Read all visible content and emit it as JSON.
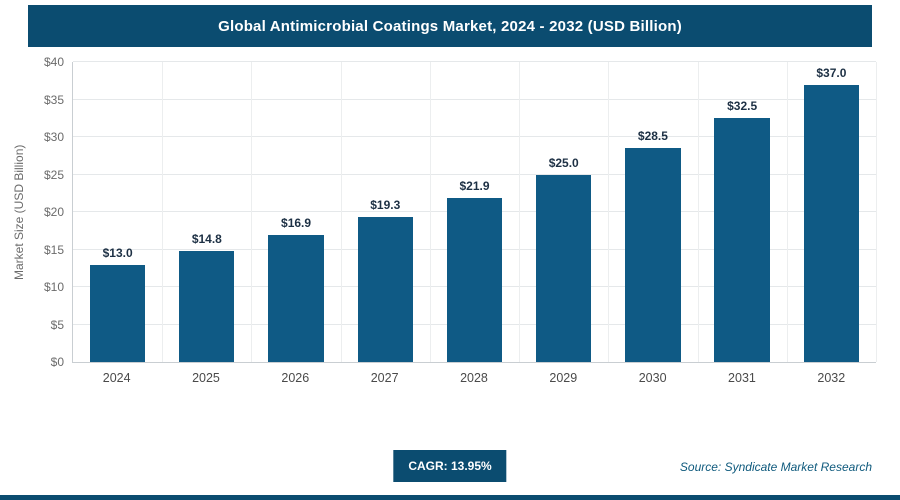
{
  "header": {
    "title": "Global Antimicrobial Coatings Market, 2024 - 2032 (USD Billion)"
  },
  "chart_data": {
    "type": "bar",
    "title": "Global Antimicrobial Coatings Market, 2024 - 2032 (USD Billion)",
    "categories": [
      "2024",
      "2025",
      "2026",
      "2027",
      "2028",
      "2029",
      "2030",
      "2031",
      "2032"
    ],
    "values": [
      13.0,
      14.8,
      16.9,
      19.3,
      21.9,
      25.0,
      28.5,
      32.5,
      37.0
    ],
    "value_labels": [
      "$13.0",
      "$14.8",
      "$16.9",
      "$19.3",
      "$21.9",
      "$25.0",
      "$28.5",
      "$32.5",
      "$37.0"
    ],
    "xlabel": "",
    "ylabel": "Market Size (USD Billion)",
    "ylim": [
      0,
      40
    ],
    "ytick_step": 5,
    "ytick_labels": [
      "$0",
      "$5",
      "$10",
      "$15",
      "$20",
      "$25",
      "$30",
      "$35",
      "$40"
    ],
    "grid": true,
    "legend": "none",
    "bar_color": "#0f5a85"
  },
  "footer": {
    "cagr_label": "CAGR: 13.95%",
    "source": "Source: Syndicate Market Research"
  },
  "colors": {
    "accent": "#0b4c70",
    "bar": "#0f5a85",
    "value_label": "#1d3044"
  }
}
